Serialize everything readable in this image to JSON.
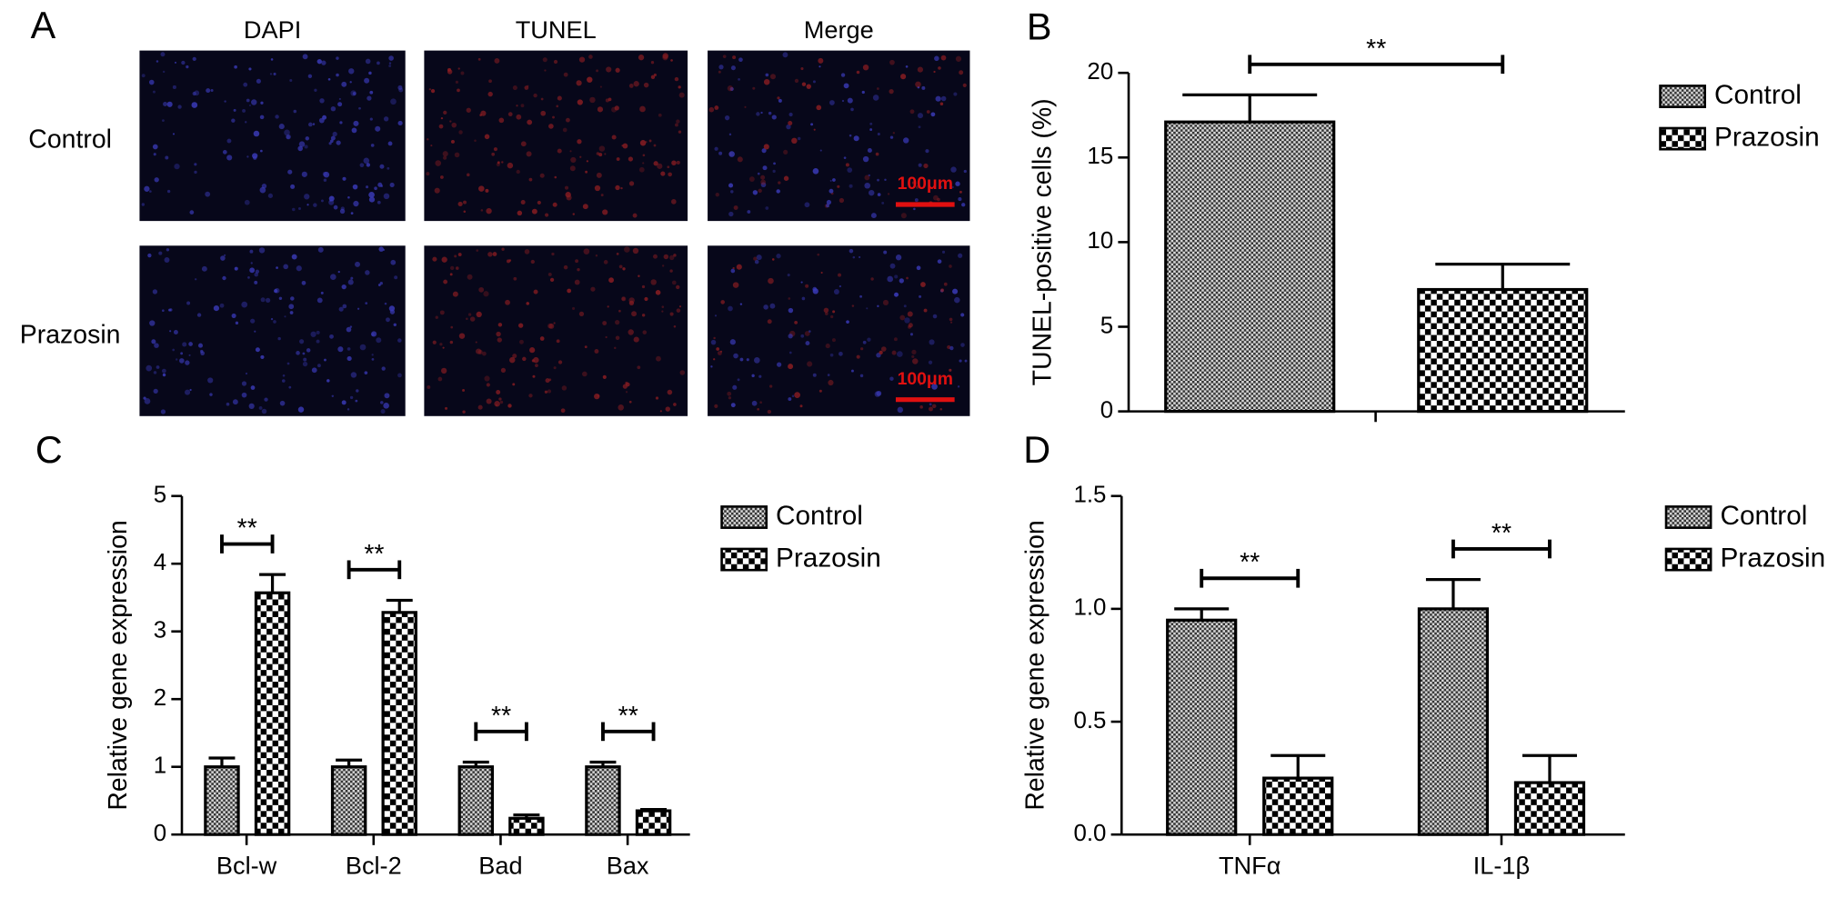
{
  "panel_a": {
    "label": "A",
    "columns": [
      "DAPI",
      "TUNEL",
      "Merge"
    ],
    "rows": [
      "Control",
      "Prazosin"
    ],
    "scale_bar": "100μm"
  },
  "chart_data": [
    {
      "type": "bar",
      "panel_label": "B",
      "ylabel": "TUNEL-positive cells (%)",
      "categories": [
        null
      ],
      "series": [
        {
          "name": "Control",
          "color": "#000000",
          "pattern": "fine-check",
          "values": [
            17.1
          ],
          "errors": [
            1.6
          ]
        },
        {
          "name": "Prazosin",
          "color": "#000000",
          "pattern": "coarse-check",
          "values": [
            7.2
          ],
          "errors": [
            1.5
          ]
        }
      ],
      "annotations": [
        "**"
      ],
      "ylim": [
        0,
        20
      ],
      "yticks": [
        0,
        5,
        10,
        15,
        20
      ],
      "legend": "right"
    },
    {
      "type": "bar",
      "panel_label": "C",
      "ylabel": "Relative gene expression",
      "categories": [
        "Bcl-w",
        "Bcl-2",
        "Bad",
        "Bax"
      ],
      "series": [
        {
          "name": "Control",
          "color": "#000000",
          "pattern": "fine-check",
          "values": [
            1,
            1,
            1,
            1
          ],
          "errors": [
            0.13,
            0.1,
            0.07,
            0.07
          ]
        },
        {
          "name": "Prazosin",
          "color": "#000000",
          "pattern": "coarse-check",
          "values": [
            3.57,
            3.28,
            0.24,
            0.35
          ],
          "errors": [
            0.27,
            0.18,
            0.05,
            0.02
          ]
        }
      ],
      "annotations": [
        "**",
        "**",
        "**",
        "**"
      ],
      "ylim": [
        0,
        5
      ],
      "yticks": [
        0,
        1,
        2,
        3,
        4,
        5
      ],
      "legend": "right"
    },
    {
      "type": "bar",
      "panel_label": "D",
      "ylabel": "Relative gene expression",
      "categories": [
        "TNFα",
        "IL-1β"
      ],
      "series": [
        {
          "name": "Control",
          "color": "#000000",
          "pattern": "fine-check",
          "values": [
            0.95,
            1.0
          ],
          "errors": [
            0.05,
            0.13
          ]
        },
        {
          "name": "Prazosin",
          "color": "#000000",
          "pattern": "coarse-check",
          "values": [
            0.25,
            0.23
          ],
          "errors": [
            0.1,
            0.12
          ]
        }
      ],
      "annotations": [
        "**",
        "**"
      ],
      "ylim": [
        0,
        1.5
      ],
      "yticks": [
        {
          "value": 0,
          "label": "0.0"
        },
        0.5,
        {
          "value": 1,
          "label": "1.0"
        },
        1.5
      ],
      "legend": "right"
    }
  ]
}
